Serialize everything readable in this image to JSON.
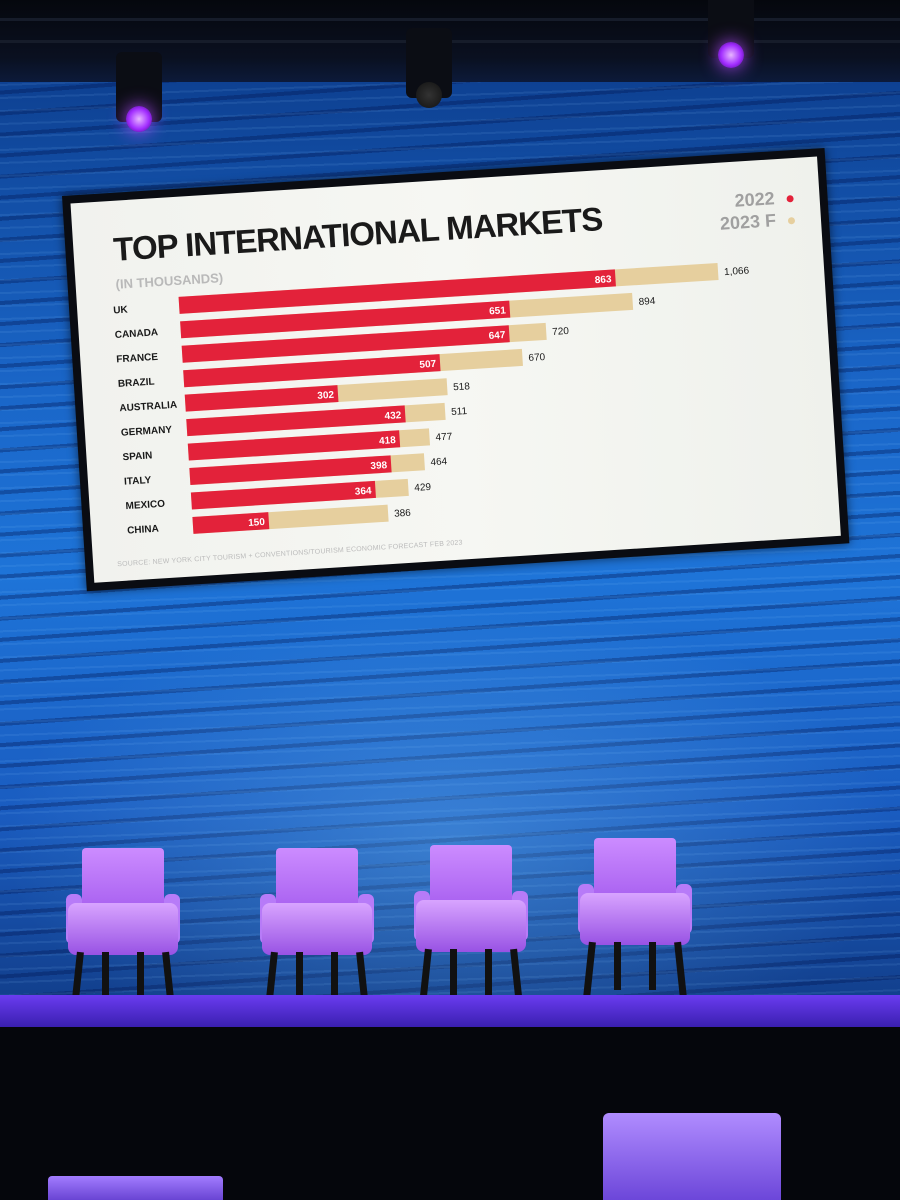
{
  "colors": {
    "series_2022": "#e3223a",
    "series_2023f": "#e6cf9e",
    "title_text": "#1a1a1a",
    "subtitle_text": "#b9b9b9",
    "value_label_inside": "#ffffff",
    "value_label_outside": "#1a1a1a"
  },
  "slide": {
    "title": "TOP INTERNATIONAL MARKETS",
    "subtitle": "(IN THOUSANDS)",
    "source": "SOURCE: NEW YORK CITY TOURISM + CONVENTIONS/TOURISM ECONOMIC FORECAST FEB 2023"
  },
  "chart_data": {
    "type": "bar",
    "orientation": "horizontal",
    "title": "TOP INTERNATIONAL MARKETS",
    "subtitle": "(IN THOUSANDS)",
    "legend_position": "top-right",
    "grid": false,
    "categories": [
      "UK",
      "CANADA",
      "FRANCE",
      "BRAZIL",
      "AUSTRALIA",
      "GERMANY",
      "SPAIN",
      "ITALY",
      "MEXICO",
      "CHINA"
    ],
    "series": [
      {
        "name": "2022",
        "values": [
          863,
          651,
          647,
          507,
          302,
          432,
          418,
          398,
          364,
          150
        ],
        "labels": [
          "863",
          "651",
          "647",
          "507",
          "302",
          "432",
          "418",
          "398",
          "364",
          "150"
        ]
      },
      {
        "name": "2023 F",
        "values": [
          1066,
          894,
          720,
          670,
          518,
          511,
          477,
          464,
          429,
          386
        ],
        "labels": [
          "1,066",
          "894",
          "720",
          "670",
          "518",
          "511",
          "477",
          "464",
          "429",
          "386"
        ]
      }
    ],
    "xlim": [
      0,
      1066
    ]
  }
}
